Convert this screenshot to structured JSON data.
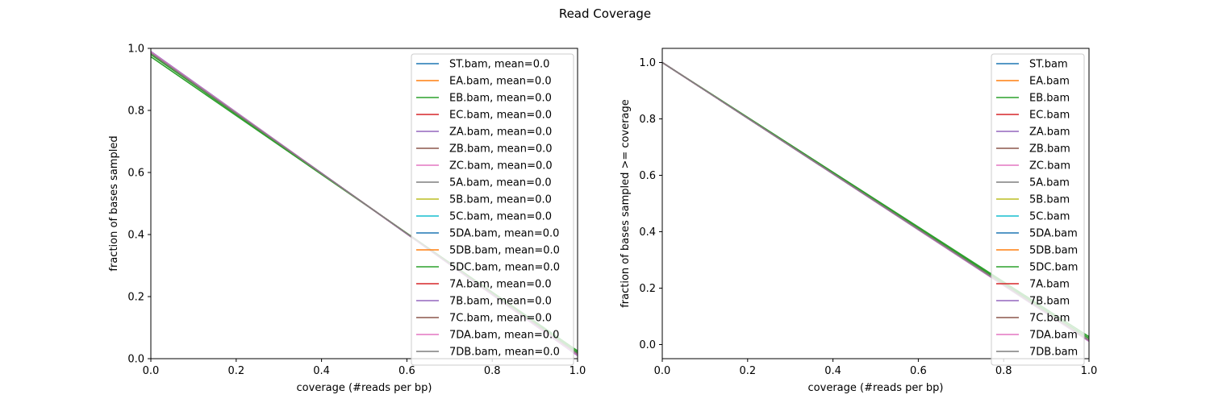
{
  "figure": {
    "title": "Read Coverage"
  },
  "chart_data": [
    {
      "type": "line",
      "title": "",
      "xlabel": "coverage (#reads per bp)",
      "ylabel": "fraction of bases sampled",
      "xlim": [
        0,
        1
      ],
      "ylim": [
        0,
        1
      ],
      "xticks": [
        "0.0",
        "0.2",
        "0.4",
        "0.6",
        "0.8",
        "1.0"
      ],
      "yticks": [
        "0.0",
        "0.2",
        "0.4",
        "0.6",
        "0.8",
        "1.0"
      ],
      "legend_position": "top-right",
      "grid": false,
      "series": [
        {
          "name": "ST.bam, mean=0.0",
          "color": "#1f77b4",
          "x": [
            0,
            1
          ],
          "y": [
            0.985,
            0.015
          ]
        },
        {
          "name": "EA.bam, mean=0.0",
          "color": "#ff7f0e",
          "x": [
            0,
            1
          ],
          "y": [
            0.985,
            0.015
          ]
        },
        {
          "name": "EB.bam, mean=0.0",
          "color": "#2ca02c",
          "x": [
            0,
            1
          ],
          "y": [
            0.973,
            0.025
          ]
        },
        {
          "name": "EC.bam, mean=0.0",
          "color": "#d62728",
          "x": [
            0,
            1
          ],
          "y": [
            0.985,
            0.015
          ]
        },
        {
          "name": "ZA.bam, mean=0.0",
          "color": "#9467bd",
          "x": [
            0,
            1
          ],
          "y": [
            0.99,
            0.01
          ]
        },
        {
          "name": "ZB.bam, mean=0.0",
          "color": "#8c564b",
          "x": [
            0,
            1
          ],
          "y": [
            0.985,
            0.015
          ]
        },
        {
          "name": "ZC.bam, mean=0.0",
          "color": "#e377c2",
          "x": [
            0,
            1
          ],
          "y": [
            0.988,
            0.012
          ]
        },
        {
          "name": "5A.bam, mean=0.0",
          "color": "#7f7f7f",
          "x": [
            0,
            1
          ],
          "y": [
            0.985,
            0.015
          ]
        },
        {
          "name": "5B.bam, mean=0.0",
          "color": "#bcbd22",
          "x": [
            0,
            1
          ],
          "y": [
            0.985,
            0.015
          ]
        },
        {
          "name": "5C.bam, mean=0.0",
          "color": "#17becf",
          "x": [
            0,
            1
          ],
          "y": [
            0.985,
            0.015
          ]
        },
        {
          "name": "5DA.bam, mean=0.0",
          "color": "#1f77b4",
          "x": [
            0,
            1
          ],
          "y": [
            0.985,
            0.015
          ]
        },
        {
          "name": "5DB.bam, mean=0.0",
          "color": "#ff7f0e",
          "x": [
            0,
            1
          ],
          "y": [
            0.985,
            0.015
          ]
        },
        {
          "name": "5DC.bam, mean=0.0",
          "color": "#2ca02c",
          "x": [
            0,
            1
          ],
          "y": [
            0.98,
            0.02
          ]
        },
        {
          "name": "7A.bam, mean=0.0",
          "color": "#d62728",
          "x": [
            0,
            1
          ],
          "y": [
            0.985,
            0.015
          ]
        },
        {
          "name": "7B.bam, mean=0.0",
          "color": "#9467bd",
          "x": [
            0,
            1
          ],
          "y": [
            0.99,
            0.01
          ]
        },
        {
          "name": "7C.bam, mean=0.0",
          "color": "#8c564b",
          "x": [
            0,
            1
          ],
          "y": [
            0.985,
            0.015
          ]
        },
        {
          "name": "7DA.bam, mean=0.0",
          "color": "#e377c2",
          "x": [
            0,
            1
          ],
          "y": [
            0.988,
            0.012
          ]
        },
        {
          "name": "7DB.bam, mean=0.0",
          "color": "#7f7f7f",
          "x": [
            0,
            1
          ],
          "y": [
            0.985,
            0.015
          ]
        }
      ]
    },
    {
      "type": "line",
      "title": "",
      "xlabel": "coverage (#reads per bp)",
      "ylabel": "fraction of bases sampled >= coverage",
      "xlim": [
        0,
        1
      ],
      "ylim": [
        -0.05,
        1.05
      ],
      "xticks": [
        "0.0",
        "0.2",
        "0.4",
        "0.6",
        "0.8",
        "1.0"
      ],
      "yticks": [
        "0.0",
        "0.2",
        "0.4",
        "0.6",
        "0.8",
        "1.0"
      ],
      "legend_position": "top-right",
      "grid": false,
      "series": [
        {
          "name": "ST.bam",
          "color": "#1f77b4",
          "x": [
            0,
            1
          ],
          "y": [
            1.0,
            0.015
          ]
        },
        {
          "name": "EA.bam",
          "color": "#ff7f0e",
          "x": [
            0,
            1
          ],
          "y": [
            1.0,
            0.015
          ]
        },
        {
          "name": "EB.bam",
          "color": "#2ca02c",
          "x": [
            0,
            1
          ],
          "y": [
            1.0,
            0.028
          ]
        },
        {
          "name": "EC.bam",
          "color": "#d62728",
          "x": [
            0,
            1
          ],
          "y": [
            1.0,
            0.015
          ]
        },
        {
          "name": "ZA.bam",
          "color": "#9467bd",
          "x": [
            0,
            1
          ],
          "y": [
            1.0,
            0.012
          ]
        },
        {
          "name": "ZB.bam",
          "color": "#8c564b",
          "x": [
            0,
            1
          ],
          "y": [
            1.0,
            0.015
          ]
        },
        {
          "name": "ZC.bam",
          "color": "#e377c2",
          "x": [
            0,
            1
          ],
          "y": [
            1.0,
            0.013
          ]
        },
        {
          "name": "5A.bam",
          "color": "#7f7f7f",
          "x": [
            0,
            1
          ],
          "y": [
            1.0,
            0.015
          ]
        },
        {
          "name": "5B.bam",
          "color": "#bcbd22",
          "x": [
            0,
            1
          ],
          "y": [
            1.0,
            0.015
          ]
        },
        {
          "name": "5C.bam",
          "color": "#17becf",
          "x": [
            0,
            1
          ],
          "y": [
            1.0,
            0.015
          ]
        },
        {
          "name": "5DA.bam",
          "color": "#1f77b4",
          "x": [
            0,
            1
          ],
          "y": [
            1.0,
            0.015
          ]
        },
        {
          "name": "5DB.bam",
          "color": "#ff7f0e",
          "x": [
            0,
            1
          ],
          "y": [
            1.0,
            0.015
          ]
        },
        {
          "name": "5DC.bam",
          "color": "#2ca02c",
          "x": [
            0,
            1
          ],
          "y": [
            1.0,
            0.022
          ]
        },
        {
          "name": "7A.bam",
          "color": "#d62728",
          "x": [
            0,
            1
          ],
          "y": [
            1.0,
            0.015
          ]
        },
        {
          "name": "7B.bam",
          "color": "#9467bd",
          "x": [
            0,
            1
          ],
          "y": [
            1.0,
            0.012
          ]
        },
        {
          "name": "7C.bam",
          "color": "#8c564b",
          "x": [
            0,
            1
          ],
          "y": [
            1.0,
            0.015
          ]
        },
        {
          "name": "7DA.bam",
          "color": "#e377c2",
          "x": [
            0,
            1
          ],
          "y": [
            1.0,
            0.013
          ]
        },
        {
          "name": "7DB.bam",
          "color": "#7f7f7f",
          "x": [
            0,
            1
          ],
          "y": [
            1.0,
            0.015
          ]
        }
      ]
    }
  ]
}
